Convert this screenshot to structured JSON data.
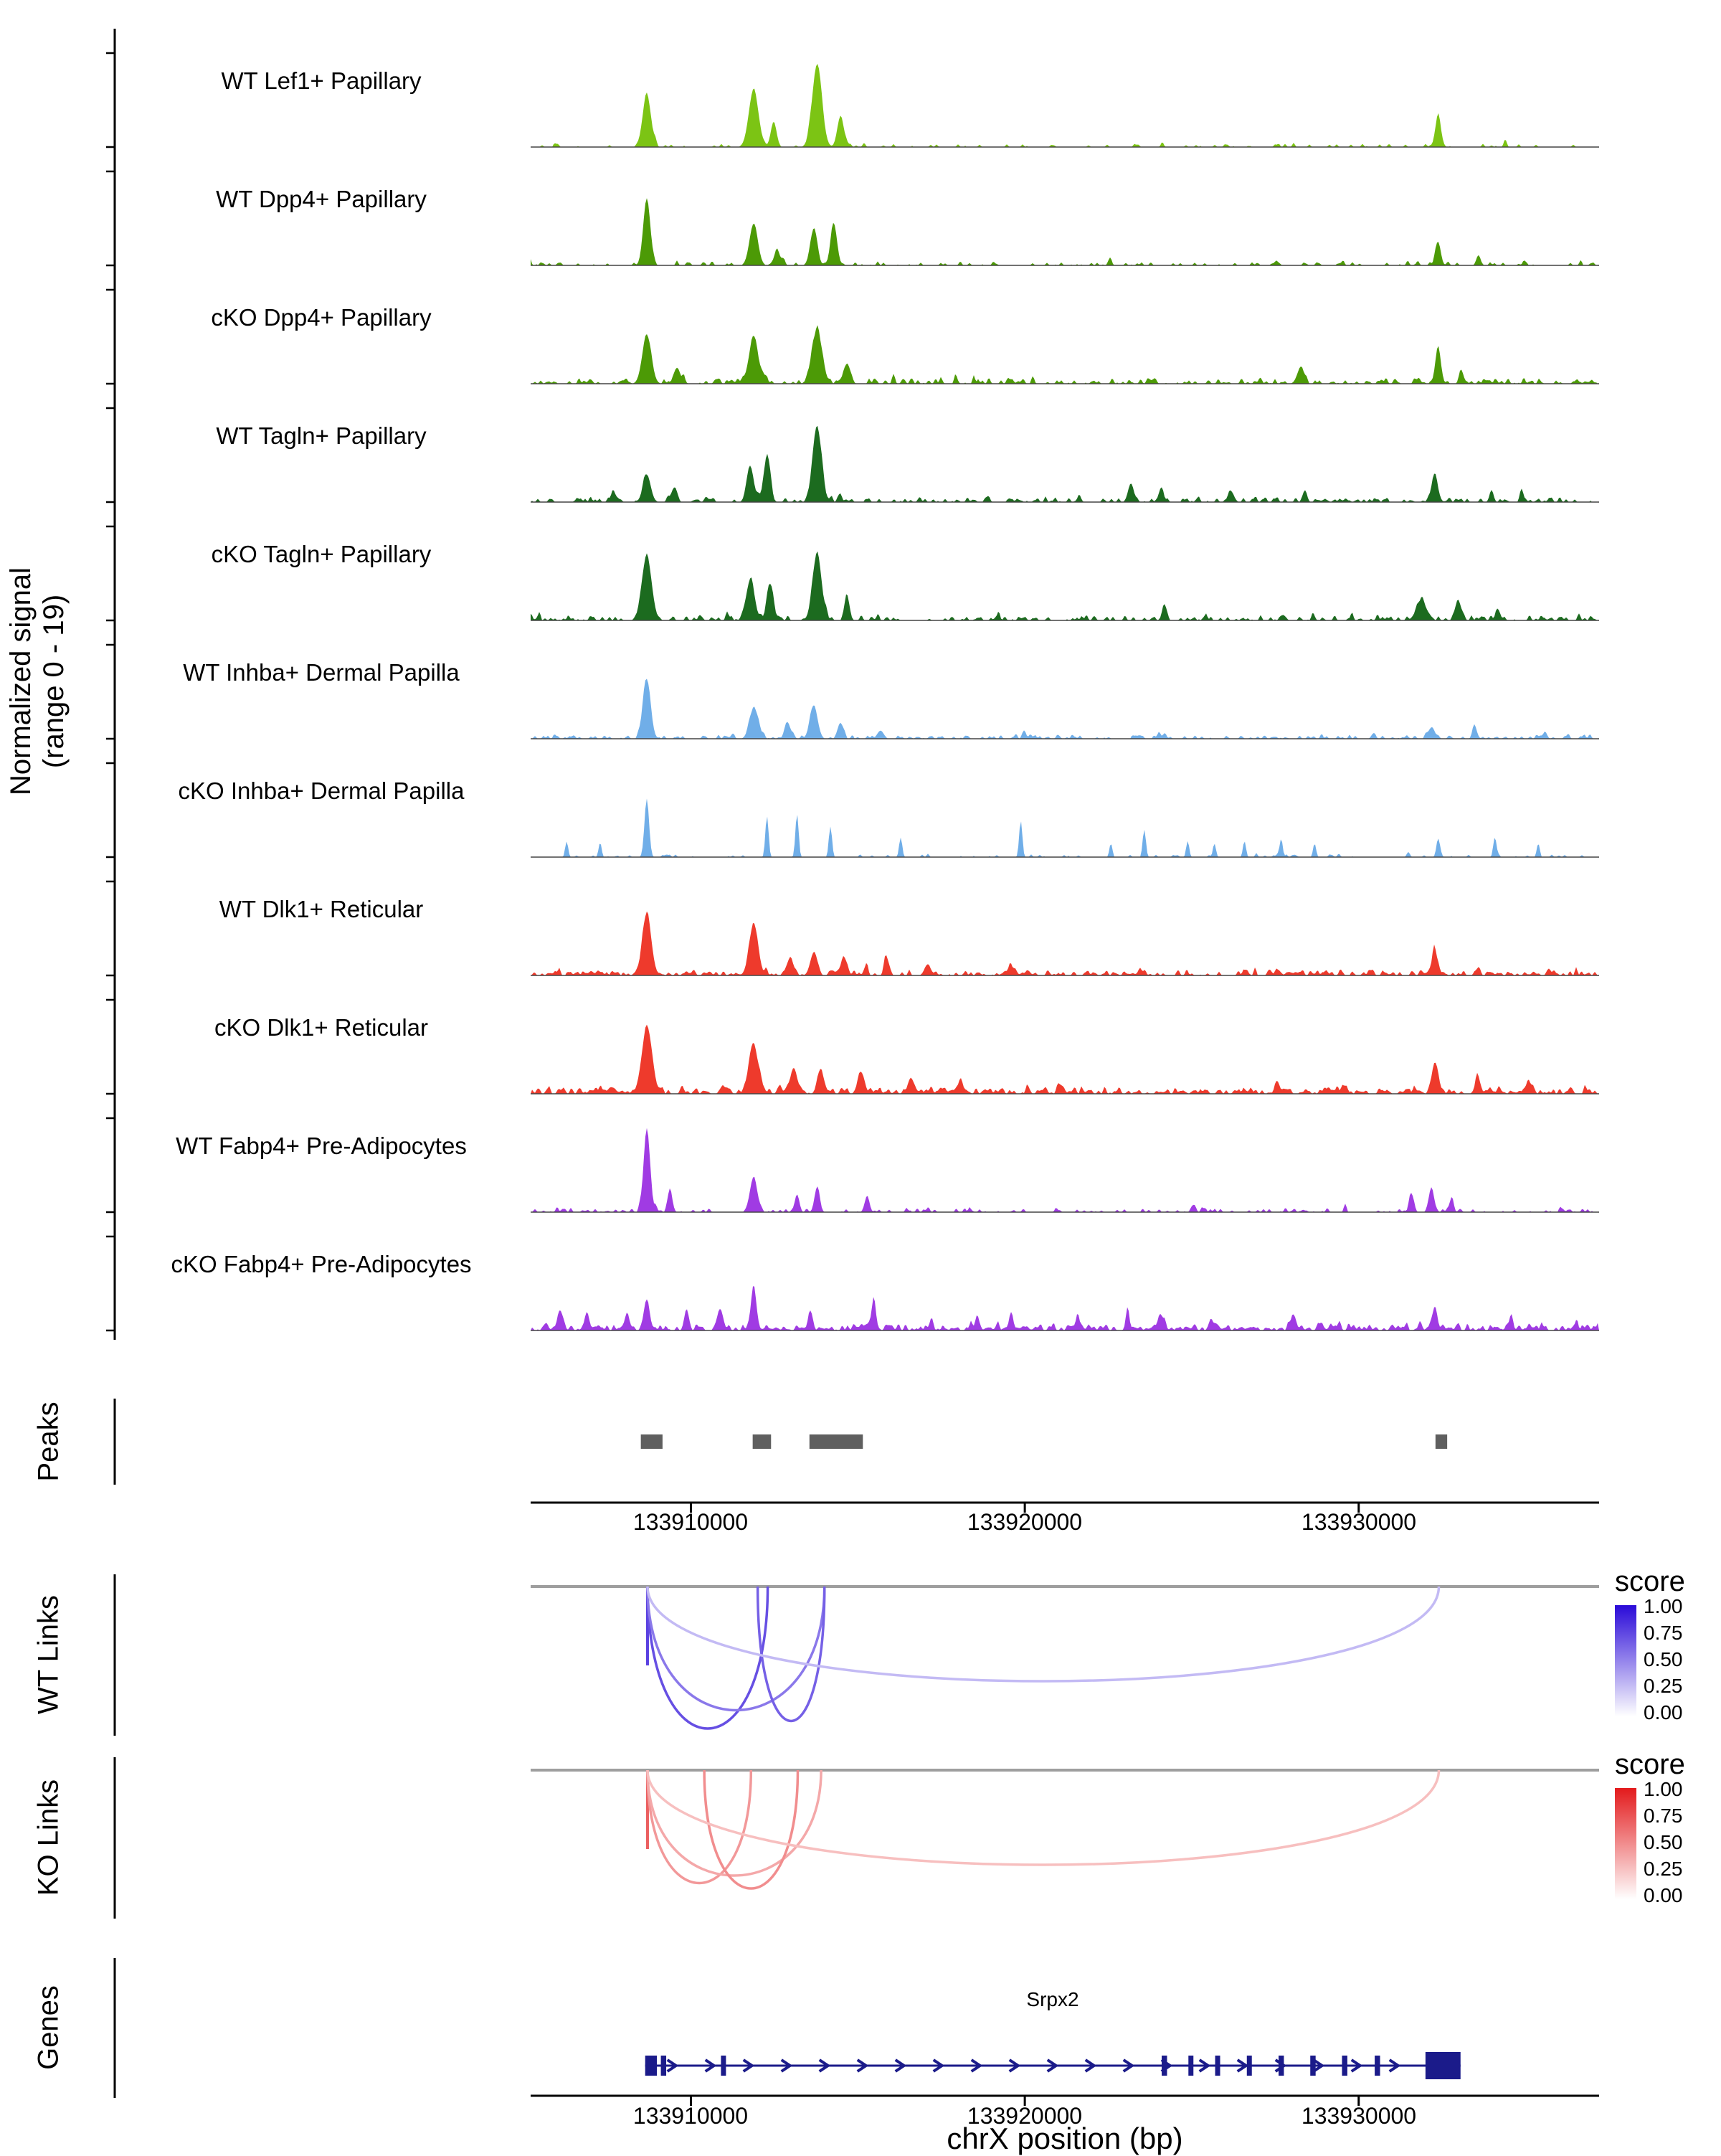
{
  "chart_data": {
    "type": "area",
    "description": "Genome browser coverage tracks with peaks, chromatin links and gene model at the Srpx2 locus",
    "axis": {
      "xlim": [
        133905200,
        133937200
      ],
      "ticks": [
        133910000,
        133920000,
        133930000
      ],
      "tick_labels": [
        "133910000",
        "133920000",
        "133930000"
      ],
      "xlabel": "chrX position (bp)",
      "chrom": "chrX"
    },
    "tracks": {
      "ylabel_line1": "Normalized signal",
      "ylabel_line2": "(range 0 - 19)",
      "range": [
        0,
        19
      ],
      "items": [
        {
          "label": "WT Lef1+ Papillary",
          "color": "#7CC414",
          "seed": 101,
          "noise_density": 0.1,
          "noise_amp": 7,
          "peaks": [
            [
              133908700,
              75,
              120
            ],
            [
              133911900,
              82,
              140
            ],
            [
              133912500,
              38,
              80
            ],
            [
              133913800,
              118,
              140
            ],
            [
              133914500,
              45,
              90
            ],
            [
              133932400,
              46,
              80
            ]
          ]
        },
        {
          "label": "WT Dpp4+ Papillary",
          "color": "#4C9A06",
          "seed": 202,
          "noise_density": 0.16,
          "noise_amp": 7,
          "peaks": [
            [
              133908700,
              98,
              100
            ],
            [
              133911900,
              60,
              120
            ],
            [
              133912600,
              26,
              70
            ],
            [
              133913700,
              52,
              100
            ],
            [
              133914300,
              62,
              90
            ],
            [
              133932400,
              36,
              70
            ],
            [
              133933600,
              16,
              50
            ]
          ]
        },
        {
          "label": "cKO Dpp4+ Papillary",
          "color": "#4C9A06",
          "seed": 303,
          "noise_density": 0.34,
          "noise_amp": 8,
          "peaks": [
            [
              133908700,
              70,
              130
            ],
            [
              133909600,
              24,
              80
            ],
            [
              133911900,
              64,
              140
            ],
            [
              133913800,
              72,
              150
            ],
            [
              133914700,
              30,
              90
            ],
            [
              133928300,
              22,
              90
            ],
            [
              133932400,
              58,
              70
            ],
            [
              133933100,
              20,
              60
            ]
          ]
        },
        {
          "label": "WT Tagln+ Papillary",
          "color": "#1C6B1F",
          "seed": 404,
          "noise_density": 0.26,
          "noise_amp": 8,
          "peaks": [
            [
              133907700,
              16,
              60
            ],
            [
              133908700,
              40,
              110
            ],
            [
              133909500,
              20,
              70
            ],
            [
              133911800,
              52,
              100
            ],
            [
              133912300,
              66,
              90
            ],
            [
              133913800,
              105,
              130
            ],
            [
              133923200,
              28,
              80
            ],
            [
              133924100,
              22,
              60
            ],
            [
              133926200,
              16,
              80
            ],
            [
              133928400,
              16,
              60
            ],
            [
              133932300,
              38,
              90
            ],
            [
              133934000,
              20,
              50
            ],
            [
              133934900,
              22,
              40
            ]
          ]
        },
        {
          "label": "cKO Tagln+ Papillary",
          "color": "#1C6B1F",
          "seed": 505,
          "noise_density": 0.3,
          "noise_amp": 8,
          "peaks": [
            [
              133908700,
              92,
              140
            ],
            [
              133911800,
              58,
              120
            ],
            [
              133912400,
              52,
              90
            ],
            [
              133913800,
              96,
              130
            ],
            [
              133914700,
              28,
              70
            ],
            [
              133924200,
              16,
              70
            ],
            [
              133931900,
              28,
              150
            ],
            [
              133933000,
              26,
              80
            ],
            [
              133934200,
              16,
              60
            ]
          ]
        },
        {
          "label": "WT Inhba+ Dermal Papilla",
          "color": "#70AEE8",
          "seed": 606,
          "noise_density": 0.26,
          "noise_amp": 7,
          "peaks": [
            [
              133908700,
              85,
              110
            ],
            [
              133911900,
              44,
              120
            ],
            [
              133912900,
              26,
              70
            ],
            [
              133913700,
              48,
              110
            ],
            [
              133914500,
              24,
              80
            ],
            [
              133915700,
              12,
              90
            ],
            [
              133920000,
              14,
              50
            ],
            [
              133932200,
              16,
              100
            ],
            [
              133933500,
              18,
              60
            ],
            [
              133935600,
              12,
              50
            ]
          ]
        },
        {
          "label": "cKO Inhba+ Dermal Papilla",
          "color": "#70AEE8",
          "seed": 707,
          "noise_density": 0.08,
          "noise_amp": 6,
          "peaks": [
            [
              133906300,
              32,
              30
            ],
            [
              133907300,
              28,
              30
            ],
            [
              133908700,
              92,
              60
            ],
            [
              133912300,
              78,
              35
            ],
            [
              133913200,
              82,
              35
            ],
            [
              133914200,
              58,
              35
            ],
            [
              133916300,
              38,
              30
            ],
            [
              133919900,
              66,
              35
            ],
            [
              133922600,
              28,
              30
            ],
            [
              133923600,
              52,
              35
            ],
            [
              133924900,
              33,
              30
            ],
            [
              133925700,
              28,
              30
            ],
            [
              133926600,
              33,
              30
            ],
            [
              133927700,
              38,
              30
            ],
            [
              133928700,
              28,
              30
            ],
            [
              133932400,
              33,
              40
            ],
            [
              133934100,
              38,
              35
            ],
            [
              133935400,
              28,
              30
            ]
          ]
        },
        {
          "label": "WT Dlk1+ Reticular",
          "color": "#EE3A2C",
          "seed": 808,
          "noise_density": 0.36,
          "noise_amp": 8,
          "peaks": [
            [
              133908700,
              88,
              130
            ],
            [
              133911900,
              72,
              130
            ],
            [
              133913000,
              28,
              80
            ],
            [
              133913700,
              33,
              100
            ],
            [
              133914600,
              26,
              90
            ],
            [
              133915900,
              23,
              70
            ],
            [
              133917100,
              16,
              80
            ],
            [
              133919600,
              14,
              60
            ],
            [
              133932300,
              33,
              90
            ],
            [
              133933600,
              13,
              50
            ]
          ]
        },
        {
          "label": "cKO Dlk1+ Reticular",
          "color": "#EE3A2C",
          "seed": 909,
          "noise_density": 0.46,
          "noise_amp": 9,
          "peaks": [
            [
              133908700,
              92,
              150
            ],
            [
              133911900,
              68,
              140
            ],
            [
              133913100,
              38,
              100
            ],
            [
              133913900,
              33,
              90
            ],
            [
              133915100,
              28,
              90
            ],
            [
              133916600,
              23,
              80
            ],
            [
              133918100,
              18,
              80
            ],
            [
              133921100,
              13,
              80
            ],
            [
              133927600,
              14,
              70
            ],
            [
              133932300,
              43,
              90
            ],
            [
              133933600,
              23,
              70
            ],
            [
              133935100,
              16,
              60
            ]
          ]
        },
        {
          "label": "WT Fabp4+ Pre-Adipocytes",
          "color": "#A03BE3",
          "seed": 1010,
          "noise_density": 0.18,
          "noise_amp": 7,
          "peaks": [
            [
              133908700,
              122,
              90
            ],
            [
              133909400,
              33,
              60
            ],
            [
              133911900,
              48,
              110
            ],
            [
              133913200,
              28,
              60
            ],
            [
              133913800,
              38,
              70
            ],
            [
              133915300,
              26,
              60
            ],
            [
              133925100,
              13,
              40
            ],
            [
              133931600,
              28,
              60
            ],
            [
              133932200,
              38,
              70
            ],
            [
              133932800,
              23,
              50
            ]
          ]
        },
        {
          "label": "cKO Fabp4+ Pre-Adipocytes",
          "color": "#A03BE3",
          "seed": 1111,
          "noise_density": 0.5,
          "noise_amp": 9,
          "peaks": [
            [
              133906100,
              23,
              60
            ],
            [
              133906900,
              28,
              50
            ],
            [
              133908100,
              26,
              60
            ],
            [
              133908700,
              43,
              80
            ],
            [
              133909900,
              28,
              60
            ],
            [
              133910900,
              33,
              60
            ],
            [
              133911900,
              62,
              80
            ],
            [
              133913600,
              28,
              60
            ],
            [
              133915500,
              52,
              50
            ],
            [
              133918600,
              23,
              50
            ],
            [
              133919600,
              26,
              50
            ],
            [
              133921600,
              18,
              50
            ],
            [
              133923100,
              23,
              50
            ],
            [
              133924100,
              26,
              50
            ],
            [
              133925600,
              20,
              50
            ],
            [
              133928100,
              23,
              50
            ],
            [
              133932300,
              38,
              60
            ],
            [
              133934600,
              23,
              40
            ]
          ]
        }
      ]
    },
    "peaks_panel": {
      "label": "Peaks",
      "color": "#5F5F5F",
      "intervals": [
        [
          133908500,
          133909150
        ],
        [
          133911850,
          133912400
        ],
        [
          133913550,
          133915150
        ],
        [
          133932300,
          133932650
        ]
      ]
    },
    "wt_links": {
      "label": "WT Links",
      "legend_title": "score",
      "legend_ticks": [
        "1.00",
        "0.75",
        "0.50",
        "0.25",
        "0.00"
      ],
      "colormap_top": "#2A0AD8",
      "links": [
        [
          133908700,
          133908700,
          0.78
        ],
        [
          133908700,
          133912300,
          0.72
        ],
        [
          133908700,
          133914000,
          0.55
        ],
        [
          133912000,
          133914000,
          0.65
        ],
        [
          133908700,
          133932400,
          0.28
        ]
      ]
    },
    "ko_links": {
      "label": "KO Links",
      "legend_title": "score",
      "legend_ticks": [
        "1.00",
        "0.75",
        "0.50",
        "0.25",
        "0.00"
      ],
      "colormap_top": "#E31A1C",
      "links": [
        [
          133908700,
          133908700,
          0.7
        ],
        [
          133908700,
          133911800,
          0.45
        ],
        [
          133908700,
          133913900,
          0.38
        ],
        [
          133910400,
          133913200,
          0.5
        ],
        [
          133908700,
          133932400,
          0.28
        ]
      ]
    },
    "genes": {
      "label": "Genes",
      "items": [
        {
          "name": "Srpx2",
          "start": 133908630,
          "end": 133933050,
          "strand": "+",
          "color": "#1B1B8A",
          "exons": [
            [
              133908630,
              133908980
            ],
            [
              133909100,
              133909260
            ],
            [
              133910900,
              133911050
            ],
            [
              133924100,
              133924260
            ],
            [
              133924900,
              133925050
            ],
            [
              133925700,
              133925850
            ],
            [
              133926650,
              133926800
            ],
            [
              133927600,
              133927760
            ],
            [
              133928550,
              133928710
            ],
            [
              133929500,
              133929660
            ],
            [
              133930480,
              133930640
            ],
            [
              133932000,
              133933050
            ]
          ]
        }
      ]
    }
  }
}
